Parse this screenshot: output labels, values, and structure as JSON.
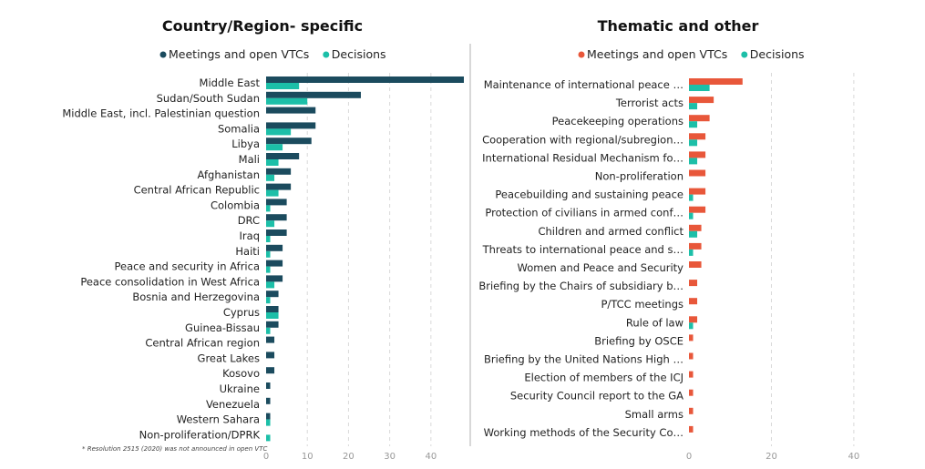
{
  "colors": {
    "meetings_left": "#1b4b5e",
    "meetings_right": "#e8573a",
    "decisions": "#1cbfa8"
  },
  "footnote": "* Resolution 2515 (2020) was not announced in open VTC",
  "chart_data": [
    {
      "type": "bar",
      "orientation": "horizontal",
      "title": "Country/Region- specific",
      "legend_position": "top",
      "grid": true,
      "xlim": [
        0,
        48
      ],
      "xticks": [
        "0",
        "10",
        "20",
        "30",
        "40"
      ],
      "categories": [
        "Middle East",
        "Sudan/South Sudan",
        "Middle East, incl. Palestinian question",
        "Somalia",
        "Libya",
        "Mali",
        "Afghanistan",
        "Central African Republic",
        "Colombia",
        "DRC",
        "Iraq",
        "Haiti",
        "Peace and security in Africa",
        "Peace consolidation in West Africa",
        "Bosnia and Herzegovina",
        "Cyprus",
        "Guinea-Bissau",
        "Central African region",
        "Great Lakes",
        "Kosovo",
        "Ukraine",
        "Venezuela",
        "Western Sahara",
        "Non-proliferation/DPRK"
      ],
      "series": [
        {
          "name": "Meetings and open VTCs",
          "values": [
            48,
            23,
            12,
            12,
            11,
            8,
            6,
            6,
            5,
            5,
            5,
            4,
            4,
            4,
            3,
            3,
            3,
            2,
            2,
            2,
            1,
            1,
            1,
            0
          ]
        },
        {
          "name": "Decisions",
          "values": [
            8,
            10,
            0,
            6,
            4,
            3,
            2,
            3,
            1,
            2,
            1,
            1,
            1,
            2,
            1,
            3,
            1,
            0,
            0,
            0,
            0,
            0,
            1,
            1
          ]
        }
      ]
    },
    {
      "type": "bar",
      "orientation": "horizontal",
      "title": "Thematic and other",
      "legend_position": "top",
      "grid": true,
      "xlim": [
        0,
        44
      ],
      "xticks": [
        "0",
        "20",
        "40"
      ],
      "categories": [
        "Maintenance of international peace …",
        "Terrorist acts",
        "Peacekeeping operations",
        "Cooperation with regional/subregion…",
        "International Residual Mechanism fo…",
        "Non-proliferation",
        "Peacebuilding and sustaining peace",
        "Protection of civilians in armed conf…",
        "Children and armed conflict",
        "Threats to international peace and s…",
        "Women and Peace and Security",
        "Briefing by the Chairs of subsidiary b…",
        "P/TCC meetings",
        "Rule of law",
        "Briefing by OSCE",
        "Briefing by the United Nations High …",
        "Election of members of the ICJ",
        "Security Council report to the GA",
        "Small arms",
        "Working methods of the Security Co…"
      ],
      "series": [
        {
          "name": "Meetings and open VTCs",
          "values": [
            13,
            6,
            5,
            4,
            4,
            4,
            4,
            4,
            3,
            3,
            3,
            2,
            2,
            2,
            1,
            1,
            1,
            1,
            1,
            1
          ]
        },
        {
          "name": "Decisions",
          "values": [
            5,
            2,
            2,
            2,
            2,
            0,
            1,
            1,
            2,
            1,
            0,
            0,
            0,
            1,
            0,
            0,
            0,
            0,
            0,
            0
          ]
        }
      ]
    }
  ]
}
